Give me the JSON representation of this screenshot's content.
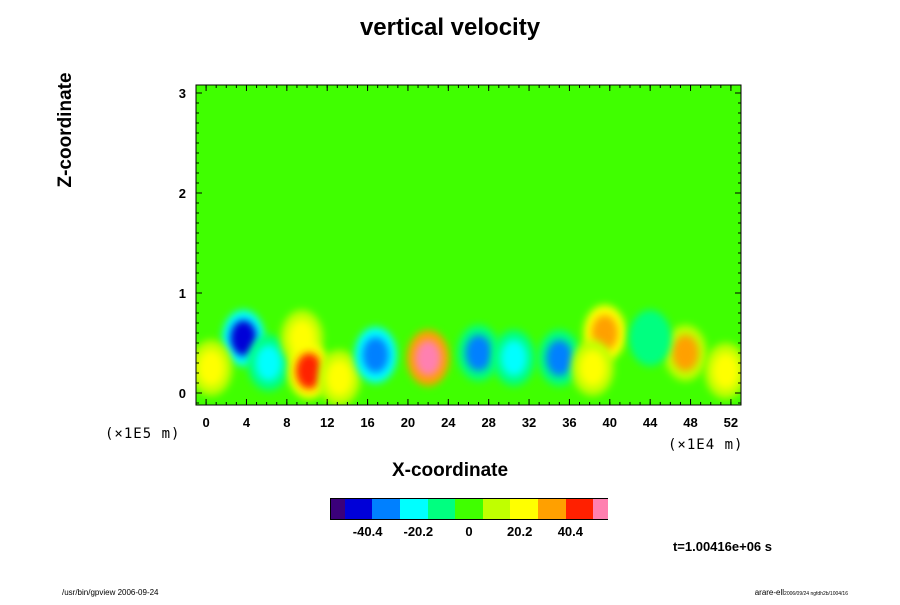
{
  "chart_data": {
    "type": "heatmap",
    "title": "vertical velocity",
    "xlabel": "X-coordinate",
    "ylabel": "Z-coordinate",
    "x_unit": "(×1E4 m)",
    "y_unit": "(×1E5 m)",
    "xlim": [
      -1,
      53
    ],
    "ylim": [
      -0.12,
      3.08
    ],
    "x_ticks": [
      "0",
      "4",
      "8",
      "12",
      "16",
      "20",
      "24",
      "28",
      "32",
      "36",
      "40",
      "44",
      "48",
      "52"
    ],
    "y_ticks": [
      "0",
      "1",
      "2",
      "3"
    ],
    "background_value": 0,
    "cells": [
      {
        "x": 3.7,
        "z": 0.55,
        "value": -42,
        "label": "blue cell"
      },
      {
        "x": 6.2,
        "z": 0.3,
        "value": -25,
        "label": "blue cell"
      },
      {
        "x": 9.5,
        "z": 0.55,
        "value": 25,
        "label": "red cell"
      },
      {
        "x": 10.2,
        "z": 0.22,
        "value": 45,
        "label": "red cell"
      },
      {
        "x": 13.2,
        "z": 0.15,
        "value": 22,
        "label": "yellow cell"
      },
      {
        "x": 16.8,
        "z": 0.38,
        "value": -38,
        "label": "blue cell"
      },
      {
        "x": 22.0,
        "z": 0.35,
        "value": 52,
        "label": "red cell"
      },
      {
        "x": 27.0,
        "z": 0.4,
        "value": -30,
        "label": "blue cell"
      },
      {
        "x": 30.5,
        "z": 0.35,
        "value": -25,
        "label": "blue cell"
      },
      {
        "x": 35.0,
        "z": 0.35,
        "value": -30,
        "label": "blue cell"
      },
      {
        "x": 39.5,
        "z": 0.6,
        "value": 38,
        "label": "orange cell"
      },
      {
        "x": 38.3,
        "z": 0.25,
        "value": 22,
        "label": "yellow cell"
      },
      {
        "x": 47.5,
        "z": 0.4,
        "value": 28,
        "label": "orange cell"
      },
      {
        "x": 51.5,
        "z": 0.22,
        "value": 20,
        "label": "yellow cell"
      },
      {
        "x": 0.5,
        "z": 0.25,
        "value": 20,
        "label": "yellow cell"
      },
      {
        "x": 44.0,
        "z": 0.55,
        "value": -15,
        "label": "cyan cell"
      }
    ],
    "colorbar": {
      "ticks": [
        "-40.4",
        "-20.2",
        "0",
        "20.2",
        "40.4"
      ],
      "min": -55,
      "max": 55,
      "colors": [
        "#3b007a",
        "#0000d8",
        "#0080ff",
        "#00ffff",
        "#00ff80",
        "#40ff00",
        "#c0ff00",
        "#ffff00",
        "#ffa000",
        "#ff2000",
        "#ff80b0"
      ]
    },
    "time_label": "t=1.00416e+06 s"
  },
  "footer": {
    "left": "/usr/bin/gpview 2006-09-24",
    "right_main": "arare-ell",
    "right_small": "2006/09/24 ngfdh2b/1004/16"
  }
}
